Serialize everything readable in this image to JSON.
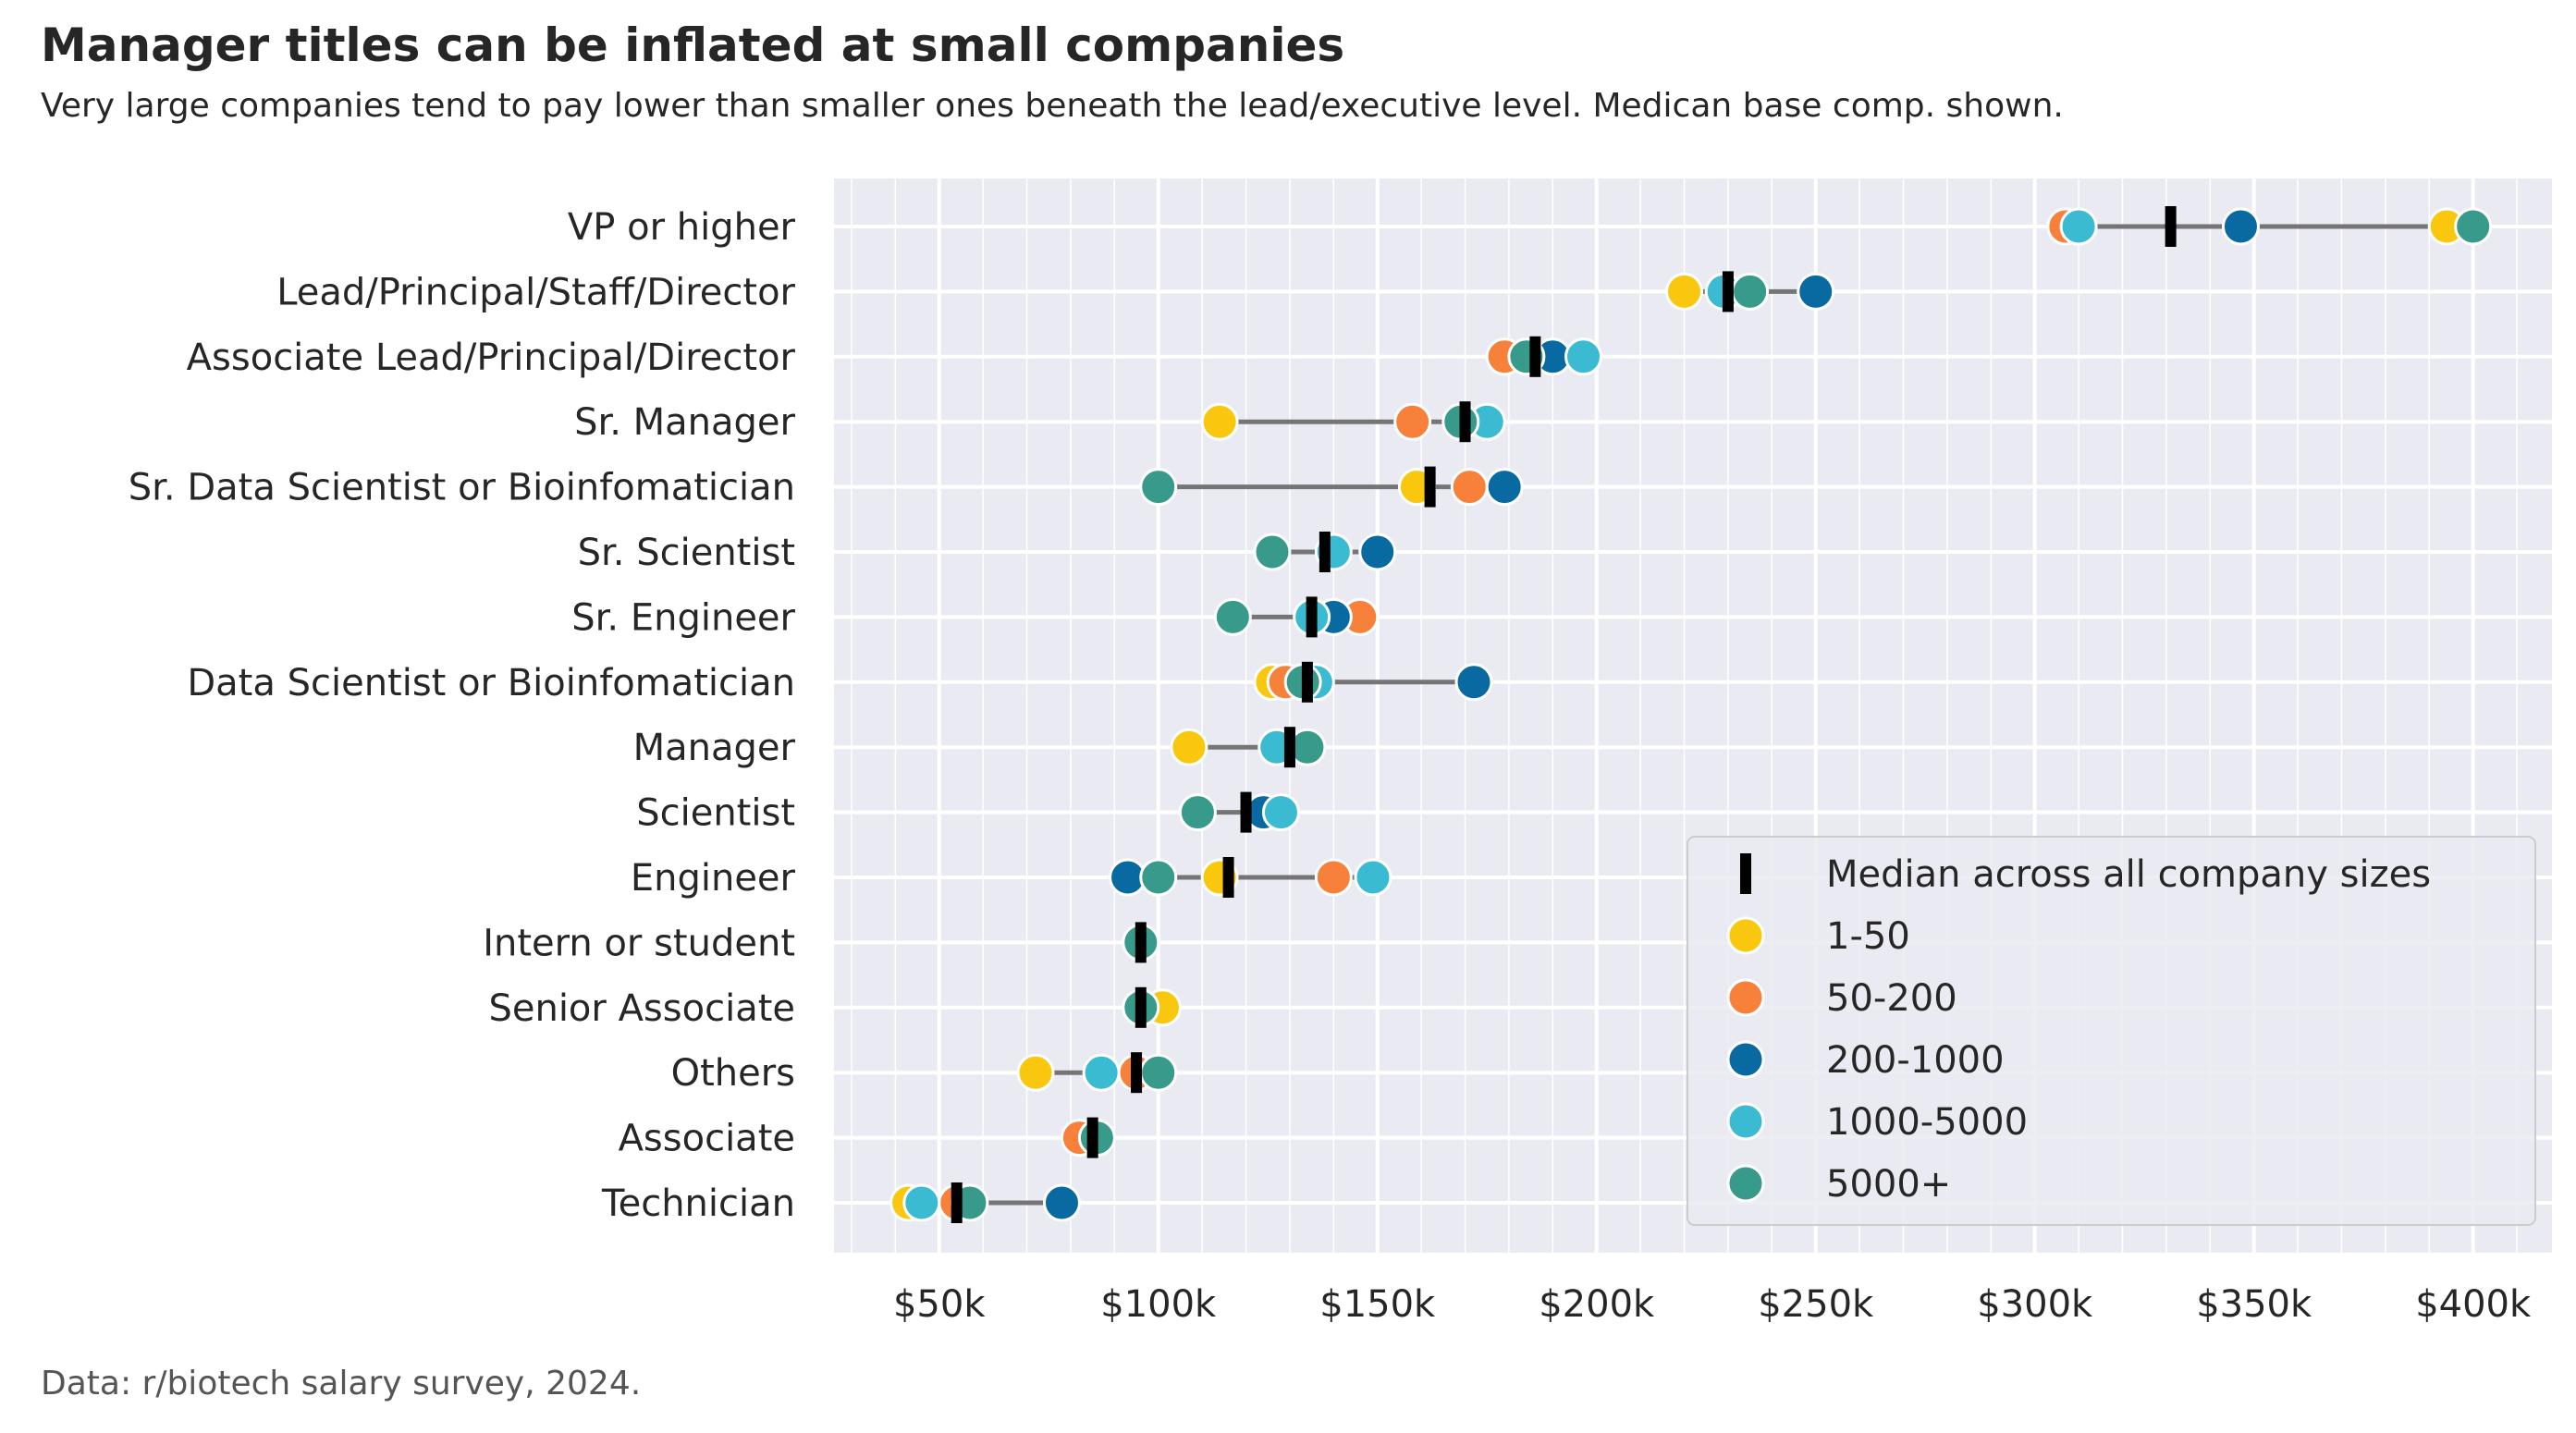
{
  "title": "Manager titles can be inflated at small companies",
  "subtitle": "Very large companies tend to pay lower than smaller ones beneath the lead/executive level. Medican base comp. shown.",
  "source": "Data: r/biotech salary survey, 2024.",
  "chart_data": {
    "type": "scatter",
    "orientation": "horizontal-dot-plot",
    "x_ticks": [
      50000,
      100000,
      150000,
      200000,
      250000,
      300000,
      350000,
      400000
    ],
    "x_tick_labels": [
      "$50k",
      "$100k",
      "$150k",
      "$200k",
      "$250k",
      "$300k",
      "$350k",
      "$400k"
    ],
    "xlim": [
      26000,
      418000
    ],
    "grid": true,
    "legend_position": "bottom-right",
    "median_label": "Median across all company sizes",
    "series": [
      {
        "name": "1-50",
        "color": "#F9C80E"
      },
      {
        "name": "50-200",
        "color": "#F7813A"
      },
      {
        "name": "200-1000",
        "color": "#086AA0"
      },
      {
        "name": "1000-5000",
        "color": "#3ABBD1"
      },
      {
        "name": "5000+",
        "color": "#379A8B"
      }
    ],
    "categories": [
      "VP or higher",
      "Lead/Principal/Staff/Director",
      "Associate Lead/Principal/Director",
      "Sr. Manager",
      "Sr. Data Scientist or Bioinfomatician",
      "Sr. Scientist",
      "Sr. Engineer",
      "Data Scientist or Bioinfomatician",
      "Manager",
      "Scientist",
      "Engineer",
      "Intern or student",
      "Senior Associate",
      "Others",
      "Associate",
      "Technician"
    ],
    "values": [
      [
        394000,
        307000,
        347000,
        310000,
        400000
      ],
      [
        220000,
        null,
        250000,
        229000,
        235000
      ],
      [
        null,
        179000,
        190000,
        197000,
        184000
      ],
      [
        114000,
        158000,
        null,
        175000,
        169000
      ],
      [
        159000,
        171000,
        179000,
        null,
        100000
      ],
      [
        null,
        null,
        150000,
        140000,
        126000
      ],
      [
        null,
        146000,
        140000,
        135000,
        117000
      ],
      [
        126000,
        129000,
        172000,
        136000,
        133000
      ],
      [
        107000,
        null,
        null,
        127000,
        134000
      ],
      [
        null,
        null,
        124000,
        128000,
        109000
      ],
      [
        114000,
        140000,
        93000,
        149000,
        100000
      ],
      [
        null,
        null,
        null,
        null,
        96000
      ],
      [
        101000,
        null,
        null,
        null,
        96000
      ],
      [
        72000,
        95000,
        null,
        87000,
        100000
      ],
      [
        null,
        82000,
        null,
        null,
        86000
      ],
      [
        43000,
        54000,
        78000,
        46000,
        57000
      ]
    ],
    "medians": [
      331000,
      230000,
      186000,
      170000,
      162000,
      138000,
      135000,
      134000,
      130000,
      120000,
      116000,
      96000,
      96000,
      95000,
      85000,
      54000
    ]
  }
}
